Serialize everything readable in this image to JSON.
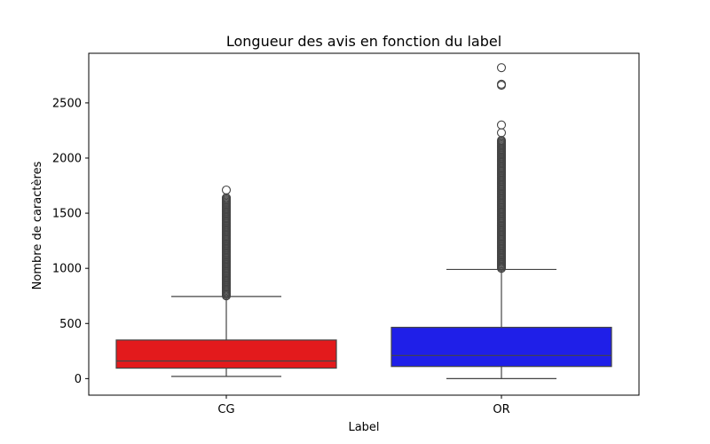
{
  "chart_data": {
    "type": "boxplot",
    "title": "Longueur des avis en fonction du label",
    "xlabel": "Label",
    "ylabel": "Nombre de caractères",
    "ylim": [
      -150,
      2950
    ],
    "yticks": [
      0,
      500,
      1000,
      1500,
      2000,
      2500
    ],
    "categories": [
      "CG",
      "OR"
    ],
    "grid": false,
    "boxes": [
      {
        "category": "CG",
        "color": "#e31a1c",
        "whisker_low": 20,
        "q1": 95,
        "median": 160,
        "q3": 350,
        "whisker_high": 745,
        "outliers": [
          750,
          780,
          820,
          860,
          900,
          940,
          980,
          1020,
          1060,
          1100,
          1140,
          1180,
          1220,
          1260,
          1300,
          1340,
          1380,
          1420,
          1460,
          1500,
          1520,
          1580,
          1610,
          1640,
          1710
        ]
      },
      {
        "category": "OR",
        "color": "#1f1fe8",
        "whisker_low": 0,
        "q1": 110,
        "median": 210,
        "q3": 465,
        "whisker_high": 990,
        "outliers": [
          1000,
          1050,
          1100,
          1150,
          1200,
          1250,
          1300,
          1350,
          1400,
          1450,
          1500,
          1550,
          1600,
          1650,
          1700,
          1750,
          1800,
          1850,
          1900,
          1950,
          2000,
          2040,
          2080,
          2110,
          2140,
          2160,
          2230,
          2300,
          2660,
          2670,
          2820
        ]
      }
    ]
  }
}
